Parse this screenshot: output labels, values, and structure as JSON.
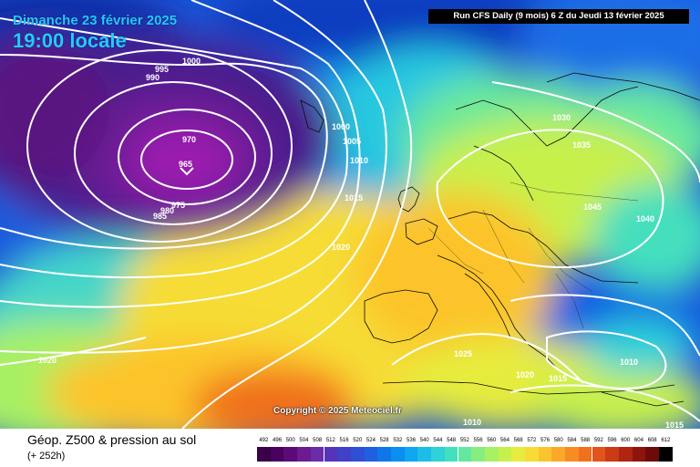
{
  "header": {
    "date": "Dimanche 23 février 2025",
    "time": "19:00 locale",
    "run_info": "Run CFS Daily (9 mois) 6 Z du Jeudi 13 février 2025",
    "copyright": "Copyright © 2025 Meteociel.fr"
  },
  "legend": {
    "title": "Géop. Z500 & pression au sol",
    "subtitle": "(+ 252h)",
    "ticks": [
      "492",
      "496",
      "500",
      "504",
      "508",
      "512",
      "516",
      "520",
      "524",
      "528",
      "532",
      "536",
      "540",
      "544",
      "548",
      "552",
      "556",
      "560",
      "564",
      "568",
      "572",
      "576",
      "580",
      "584",
      "588",
      "592",
      "596",
      "600",
      "604",
      "608",
      "612"
    ],
    "colors": [
      "#3a0048",
      "#4a005e",
      "#5c0a75",
      "#6e1a90",
      "#6a2ca8",
      "#5533bb",
      "#4040c8",
      "#2f4fd4",
      "#1f5fe0",
      "#0f76ea",
      "#0a8ef0",
      "#10a6f0",
      "#1cbde8",
      "#2ed2d8",
      "#44dfbe",
      "#64e8a0",
      "#86ee80",
      "#a8f064",
      "#c8f04c",
      "#e6ec3e",
      "#f6dc34",
      "#fcc42c",
      "#fca828",
      "#f88c24",
      "#f0701e",
      "#e2541a",
      "#cc3a16",
      "#b02412",
      "#8e140e",
      "#6e0a0a",
      "#000000"
    ]
  },
  "isobar_labels": [
    {
      "text": "1000",
      "name": "isobar-label-1000-north"
    },
    {
      "text": "995",
      "name": "isobar-label-995"
    },
    {
      "text": "990",
      "name": "isobar-label-990"
    },
    {
      "text": "970",
      "name": "isobar-label-970"
    },
    {
      "text": "965",
      "name": "isobar-label-965"
    },
    {
      "text": "975",
      "name": "isobar-label-975"
    },
    {
      "text": "980",
      "name": "isobar-label-980"
    },
    {
      "text": "985",
      "name": "isobar-label-985"
    },
    {
      "text": "1000",
      "name": "isobar-label-1000-east"
    },
    {
      "text": "1005",
      "name": "isobar-label-1005"
    },
    {
      "text": "1010",
      "name": "isobar-label-1010-atlantic"
    },
    {
      "text": "1015",
      "name": "isobar-label-1015-atlantic"
    },
    {
      "text": "1020",
      "name": "isobar-label-1020-atlantic"
    },
    {
      "text": "1030",
      "name": "isobar-label-1030"
    },
    {
      "text": "1035",
      "name": "isobar-label-1035"
    },
    {
      "text": "1045",
      "name": "isobar-label-1045"
    },
    {
      "text": "1040",
      "name": "isobar-label-1040"
    },
    {
      "text": "1025",
      "name": "isobar-label-1025"
    },
    {
      "text": "1020",
      "name": "isobar-label-1020-italy"
    },
    {
      "text": "1015",
      "name": "isobar-label-1015-balkans"
    },
    {
      "text": "1010",
      "name": "isobar-label-1010-aegean"
    },
    {
      "text": "1020",
      "name": "isobar-label-1020-west"
    },
    {
      "text": "1010",
      "name": "isobar-label-1010-africa"
    },
    {
      "text": "1015",
      "name": "isobar-label-1015-east"
    }
  ]
}
